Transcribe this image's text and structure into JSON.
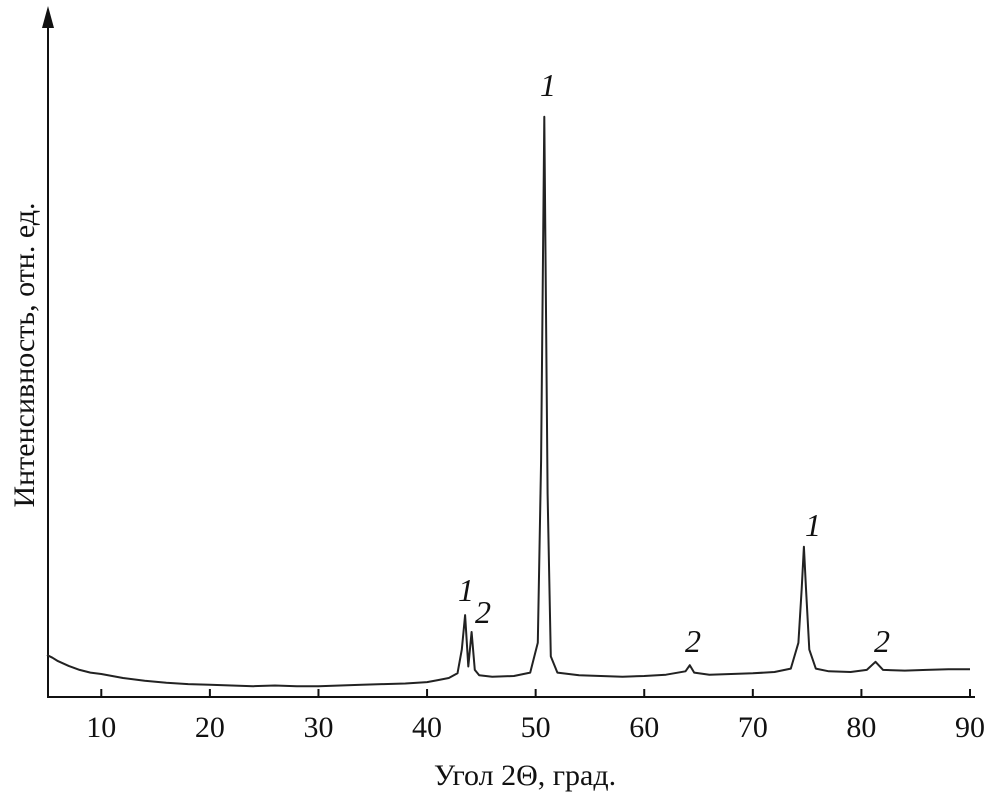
{
  "chart_data": {
    "type": "line",
    "x_label": "Угол 2Θ, град.",
    "y_label": "Интенсивность, отн. ед.",
    "xlim": [
      5,
      90
    ],
    "xticks": [
      10,
      20,
      30,
      40,
      50,
      60,
      70,
      80,
      90
    ],
    "ylim": [
      0,
      100
    ],
    "series": [
      {
        "color": "#222222",
        "x": [
          5,
          5.5,
          6,
          7,
          8,
          9,
          10,
          12,
          14,
          16,
          18,
          20,
          22,
          24,
          26,
          28,
          30,
          32,
          34,
          36,
          38,
          40,
          41,
          42,
          42.8,
          43.2,
          43.5,
          43.8,
          44.1,
          44.4,
          44.8,
          46,
          48,
          49.5,
          50.2,
          50.5,
          50.8,
          51.1,
          51.4,
          52,
          54,
          56,
          58,
          60,
          62,
          63.8,
          64.2,
          64.6,
          66,
          68,
          70,
          72,
          73.5,
          74.2,
          74.5,
          74.7,
          74.9,
          75.2,
          75.8,
          77,
          79,
          80.5,
          81.3,
          82,
          84,
          86,
          88,
          90
        ],
        "values": [
          6.2,
          5.8,
          5.3,
          4.6,
          4.0,
          3.6,
          3.4,
          2.8,
          2.4,
          2.1,
          1.9,
          1.8,
          1.7,
          1.6,
          1.7,
          1.6,
          1.6,
          1.7,
          1.8,
          1.9,
          2.0,
          2.2,
          2.5,
          2.8,
          3.5,
          7,
          12.1,
          4.5,
          9.6,
          4.0,
          3.2,
          3.0,
          3.1,
          3.6,
          8,
          35,
          85.7,
          30,
          6,
          3.6,
          3.2,
          3.1,
          3.0,
          3.1,
          3.3,
          3.8,
          4.7,
          3.6,
          3.3,
          3.4,
          3.5,
          3.7,
          4.2,
          8,
          16,
          22.2,
          16,
          7,
          4.2,
          3.8,
          3.7,
          4.0,
          5.2,
          4.0,
          3.9,
          4.0,
          4.1,
          4.1
        ]
      }
    ],
    "annotations": [
      "1",
      "1",
      "2",
      "2",
      "1",
      "2"
    ]
  }
}
